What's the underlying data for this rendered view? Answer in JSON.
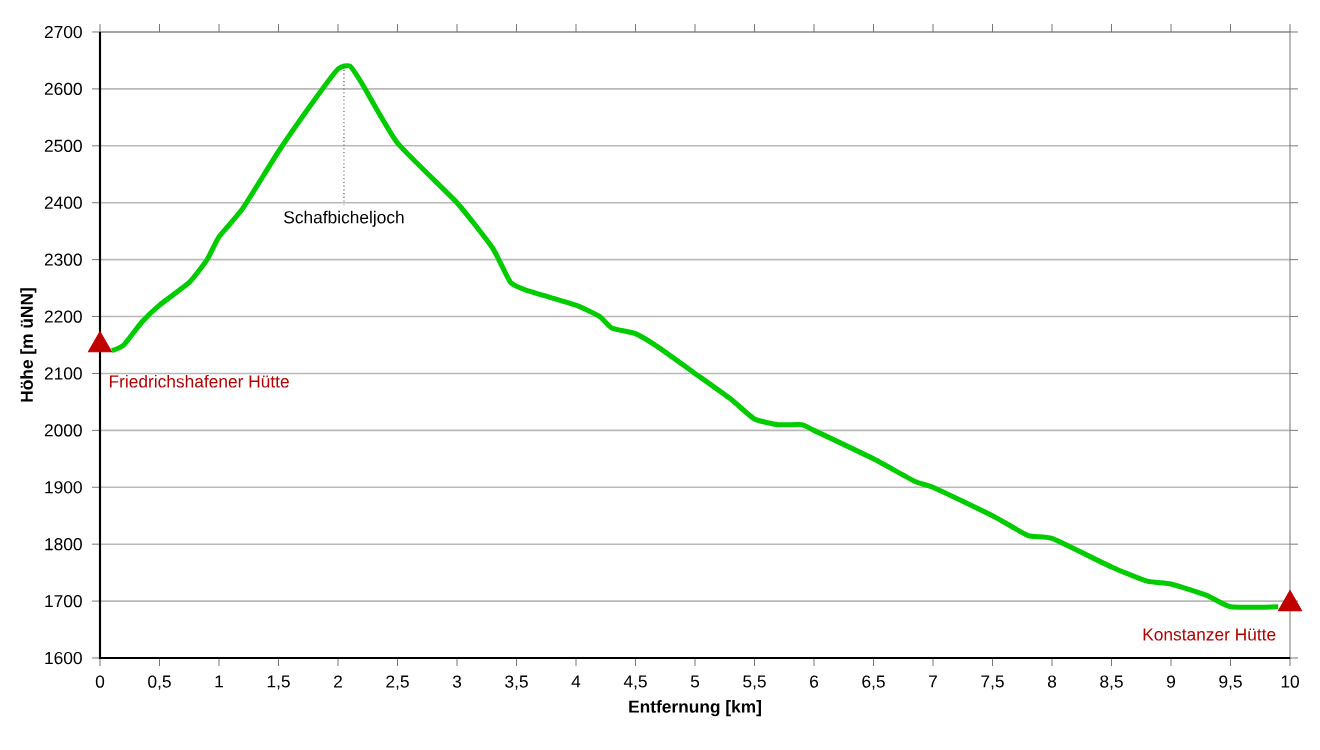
{
  "chart_data": {
    "type": "line",
    "xlabel": "Entfernung [km]",
    "ylabel": "Höhe [m üNN]",
    "xlim": [
      0,
      10
    ],
    "ylim": [
      1600,
      2700
    ],
    "xticks": [
      0,
      {
        "value": 0.5,
        "label": "0,5"
      },
      1,
      {
        "value": 1.5,
        "label": "1,5"
      },
      2,
      {
        "value": 2.5,
        "label": "2,5"
      },
      3,
      {
        "value": 3.5,
        "label": "3,5"
      },
      4,
      {
        "value": 4.5,
        "label": "4,5"
      },
      5,
      {
        "value": 5.5,
        "label": "5,5"
      },
      6,
      {
        "value": 6.5,
        "label": "6,5"
      },
      7,
      {
        "value": 7.5,
        "label": "7,5"
      },
      8,
      {
        "value": 8.5,
        "label": "8,5"
      },
      9,
      {
        "value": 9.5,
        "label": "9,5"
      },
      10
    ],
    "yticks": [
      1600,
      1700,
      1800,
      1900,
      2000,
      2100,
      2200,
      2300,
      2400,
      2500,
      2600,
      2700
    ],
    "grid": "y",
    "series": [
      {
        "color": "#00cc00",
        "marker": "none",
        "line_style": "solid",
        "x": [
          0.1,
          0.2,
          0.35,
          0.5,
          0.75,
          0.9,
          1.0,
          1.2,
          1.5,
          1.8,
          2.0,
          2.1,
          2.2,
          2.5,
          3.0,
          3.3,
          3.45,
          3.6,
          4.0,
          4.2,
          4.3,
          4.5,
          4.7,
          5.0,
          5.3,
          5.5,
          5.7,
          5.9,
          6.0,
          6.5,
          6.85,
          7.0,
          7.5,
          7.8,
          8.0,
          8.5,
          8.8,
          9.0,
          9.3,
          9.5,
          9.9
        ],
        "values": [
          2140,
          2150,
          2190,
          2220,
          2260,
          2300,
          2340,
          2390,
          2490,
          2580,
          2635,
          2640,
          2610,
          2505,
          2400,
          2320,
          2260,
          2245,
          2220,
          2200,
          2180,
          2170,
          2145,
          2100,
          2055,
          2020,
          2010,
          2010,
          2000,
          1950,
          1910,
          1900,
          1850,
          1815,
          1810,
          1760,
          1735,
          1730,
          1710,
          1690,
          1690
        ]
      },
      {
        "type": "scatter",
        "color": "#c00000",
        "marker": "triangle",
        "x": [
          0,
          10
        ],
        "values": [
          2150,
          1695
        ]
      }
    ],
    "annotations": [
      {
        "text": "Schafbicheljoch",
        "x": 2.05,
        "y": 2640
      },
      {
        "text": "Friedrichshafener Hütte",
        "x": 0,
        "y": 2150
      },
      {
        "text": "Konstanzer Hütte",
        "x": 10,
        "y": 1695
      }
    ]
  }
}
